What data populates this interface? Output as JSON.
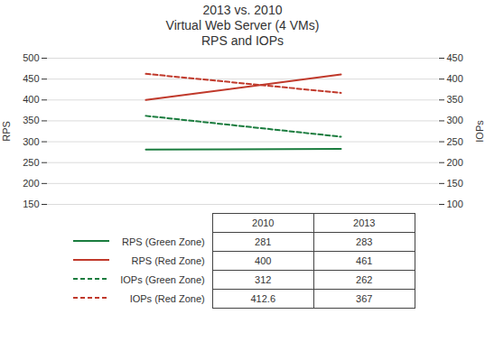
{
  "chart_data": {
    "type": "line",
    "title": "2013 vs. 2010",
    "subtitle": [
      "Virtual Web Server (4 VMs)",
      "RPS and IOPs"
    ],
    "categories": [
      "2010",
      "2013"
    ],
    "series": [
      {
        "name": "RPS (Green Zone)",
        "color": "#1a7c3e",
        "line_style": "solid",
        "values": [
          281,
          283
        ]
      },
      {
        "name": "RPS (Red Zone)",
        "color": "#c0392b",
        "line_style": "solid",
        "values": [
          400,
          461
        ]
      },
      {
        "name": "IOPs (Green Zone)",
        "color": "#1a7c3e",
        "line_style": "dashed",
        "axis": "y2",
        "values": [
          312,
          262
        ]
      },
      {
        "name": "IOPs (Red Zone)",
        "color": "#c0392b",
        "line_style": "dashed",
        "axis": "y2",
        "values": [
          412.6,
          367
        ]
      }
    ],
    "ylabel": "RPS",
    "y2label": "IOPs",
    "ylim": [
      150,
      500
    ],
    "yticks": [
      150,
      200,
      250,
      300,
      350,
      400,
      450,
      500
    ],
    "y2lim": [
      100,
      450
    ],
    "y2ticks": [
      100,
      150,
      200,
      250,
      300,
      350,
      400,
      450
    ],
    "grid": true,
    "legend": "bottom",
    "data_labels": true,
    "tick_labels": "y"
  }
}
